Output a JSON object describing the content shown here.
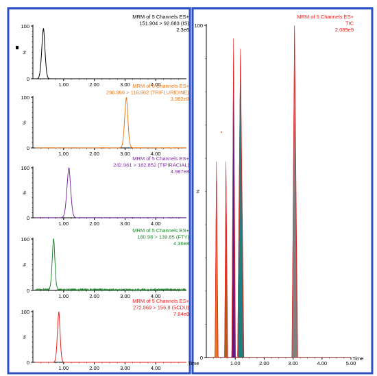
{
  "window": {
    "frame_color": "#2b4fc4",
    "left_marker_color": "#000000"
  },
  "chart_data": [
    {
      "type": "line",
      "id": "ch1",
      "color": "#000000",
      "header": [
        "MRM of 5 Channels ES+",
        "151.904 > 92.683 (IS)",
        "2.3e6"
      ],
      "ylabel": "%",
      "xlim": [
        0,
        5.0
      ],
      "ylim": [
        0,
        100
      ],
      "yticks": [
        0,
        100
      ],
      "xticks": [
        "1.00",
        "2.00",
        "3.00",
        "4.00"
      ],
      "peaks": [
        {
          "rt": 0.35,
          "height": 96,
          "width": 0.06
        }
      ],
      "noise": 0
    },
    {
      "type": "line",
      "id": "ch2",
      "color": "#e8781e",
      "header": [
        "MRM of 5 Channels ES+",
        "296.966 > 116.862 (TRIFLURIDINE)",
        "3.982e8"
      ],
      "ylabel": "%",
      "xlim": [
        0,
        5.0
      ],
      "ylim": [
        0,
        100
      ],
      "yticks": [
        0,
        100
      ],
      "xticks": [
        "1.00",
        "2.00",
        "3.00",
        "4.00"
      ],
      "peaks": [
        {
          "rt": 3.05,
          "height": 100,
          "width": 0.06
        }
      ],
      "noise": 0.5
    },
    {
      "type": "line",
      "id": "ch3",
      "color": "#7b2fa0",
      "header": [
        "MRM of 5 Channels ES+",
        "242.961 > 182.852 (TIPIRACIAL)",
        "4.987e8"
      ],
      "ylabel": "%",
      "xlim": [
        0,
        5.0
      ],
      "ylim": [
        0,
        100
      ],
      "yticks": [
        0,
        100
      ],
      "xticks": [
        "1.00",
        "2.00",
        "3.00",
        "4.00"
      ],
      "peaks": [
        {
          "rt": 1.18,
          "height": 100,
          "width": 0.07
        }
      ],
      "noise": 0.5
    },
    {
      "type": "line",
      "id": "ch4",
      "color": "#1f8a2e",
      "header": [
        "MRM of 5 Channels ES+",
        "180.98 > 139.85 (FTY)",
        "4.36e8"
      ],
      "ylabel": "%",
      "xlim": [
        0,
        5.0
      ],
      "ylim": [
        0,
        100
      ],
      "yticks": [
        0,
        100
      ],
      "xticks": [
        "1.00",
        "2.00",
        "3.00",
        "4.00"
      ],
      "peaks": [
        {
          "rt": 0.68,
          "height": 100,
          "width": 0.05
        }
      ],
      "noise": 3
    },
    {
      "type": "line",
      "id": "ch5",
      "color": "#e82020",
      "header": [
        "MRM of 5 Channels ES+",
        "272.969 > 156.8 (5CDU)",
        "7.64e8"
      ],
      "ylabel": "%",
      "xlim": [
        0,
        5.0
      ],
      "ylim": [
        0,
        100
      ],
      "yticks": [
        0,
        100
      ],
      "xticks": [
        "1.00",
        "2.00",
        "3.00",
        "4.00"
      ],
      "xlabel": "Time",
      "peaks": [
        {
          "rt": 0.85,
          "height": 100,
          "width": 0.05
        }
      ],
      "noise": 0
    },
    {
      "type": "area",
      "id": "tic",
      "color": "#e82020",
      "header": [
        "MRM of 5 Channels ES+",
        "TIC",
        "2.089e9"
      ],
      "ylabel": "%",
      "xlim": [
        0,
        5.0
      ],
      "ylim": [
        0,
        100
      ],
      "yticks": [
        0,
        100
      ],
      "xticks": [
        "1.00",
        "2.00",
        "3.00",
        "4.00",
        "5.00"
      ],
      "xlabel": "Time",
      "peaks": [
        {
          "rt": 0.35,
          "height": 59,
          "width": 0.11,
          "fill": "#e8781e"
        },
        {
          "rt": 0.68,
          "height": 59,
          "width": 0.11,
          "fill": "#b5581c"
        },
        {
          "rt": 0.94,
          "height": 96,
          "width": 0.13,
          "fill": "#5a1e8a"
        },
        {
          "rt": 1.18,
          "height": 93,
          "width": 0.22,
          "fill": "#1f7f7f"
        },
        {
          "rt": 3.05,
          "height": 100,
          "width": 0.2,
          "fill": "#808080"
        }
      ]
    }
  ]
}
